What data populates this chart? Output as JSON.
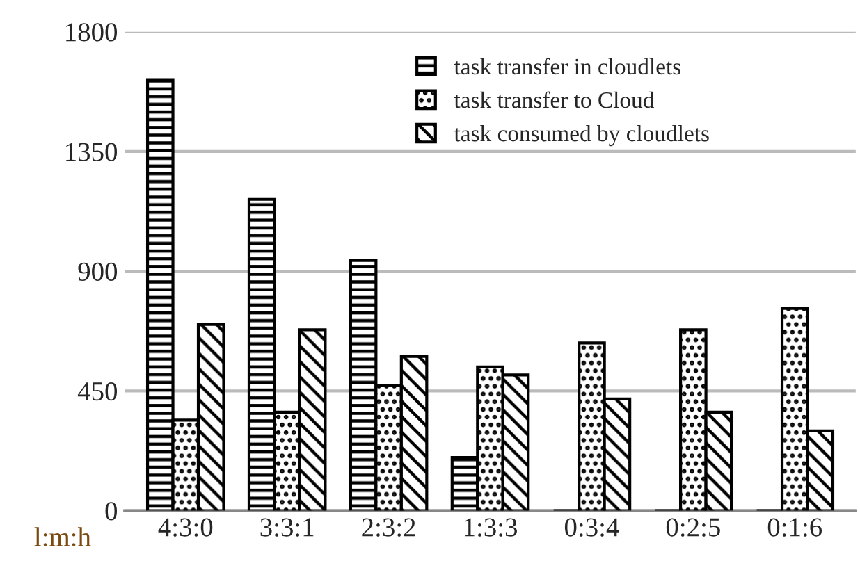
{
  "chart_data": {
    "type": "bar",
    "xlabel": "l:m:h",
    "categories": [
      "4:3:0",
      "3:3:1",
      "2:3:2",
      "1:3:3",
      "0:3:4",
      "0:2:5",
      "0:1:6"
    ],
    "series": [
      {
        "name": "task transfer in cloudlets",
        "color": "#000000",
        "values": [
          1620,
          1170,
          940,
          200,
          0,
          0,
          0
        ]
      },
      {
        "name": "task transfer to Cloud",
        "color": "#000000",
        "values": [
          340,
          370,
          470,
          540,
          630,
          680,
          760
        ]
      },
      {
        "name": "task consumed by cloudlets",
        "color": "#000000",
        "values": [
          700,
          680,
          580,
          510,
          420,
          370,
          300
        ]
      }
    ],
    "ylim": [
      0,
      1800
    ],
    "yticks": [
      0,
      450,
      900,
      1350,
      1800
    ],
    "grid": "y",
    "legend": "top"
  }
}
